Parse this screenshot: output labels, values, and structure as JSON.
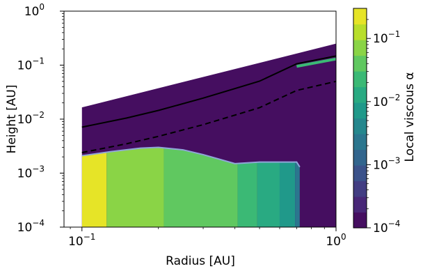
{
  "chart_data": {
    "type": "heatmap",
    "title": "",
    "xlabel": "Radius [AU]",
    "ylabel": "Height [AU]",
    "xscale": "log",
    "yscale": "log",
    "xlim": [
      0.085,
      1.0
    ],
    "ylim": [
      0.0001,
      1.0
    ],
    "x_ticks": [
      {
        "value": 0.1,
        "base": "10",
        "exp": "−1"
      },
      {
        "value": 1.0,
        "base": "10",
        "exp": "0"
      }
    ],
    "y_ticks": [
      {
        "value": 0.0001,
        "base": "10",
        "exp": "−4"
      },
      {
        "value": 0.001,
        "base": "10",
        "exp": "−3"
      },
      {
        "value": 0.01,
        "base": "10",
        "exp": "−2"
      },
      {
        "value": 0.1,
        "base": "10",
        "exp": "−1"
      },
      {
        "value": 1.0,
        "base": "10",
        "exp": "0"
      }
    ],
    "colorbar": {
      "label": "Local viscous α",
      "scale": "log",
      "range": [
        0.0001,
        0.3
      ],
      "n_levels": 14,
      "ticks": [
        {
          "value": 0.0001,
          "base": "10",
          "exp": "−4"
        },
        {
          "value": 0.001,
          "base": "10",
          "exp": "−3"
        },
        {
          "value": 0.01,
          "base": "10",
          "exp": "−2"
        },
        {
          "value": 0.1,
          "base": "10",
          "exp": "−1"
        }
      ]
    },
    "disk_outer_boundary": [
      [
        0.1,
        0.0165
      ],
      [
        1.0,
        0.25
      ]
    ],
    "disk_base_alpha": 0.0001,
    "active_region": {
      "top_boundary": [
        [
          0.1,
          0.0021
        ],
        [
          0.13,
          0.0025
        ],
        [
          0.17,
          0.0029
        ],
        [
          0.2,
          0.003
        ],
        [
          0.25,
          0.0027
        ],
        [
          0.3,
          0.0022
        ],
        [
          0.4,
          0.0015
        ],
        [
          0.5,
          0.0016
        ],
        [
          0.6,
          0.0016
        ],
        [
          0.7,
          0.0016
        ],
        [
          0.72,
          0.0013
        ]
      ],
      "bands": [
        {
          "x_from": 0.1,
          "x_to": 0.125,
          "alpha": 0.25
        },
        {
          "x_from": 0.125,
          "x_to": 0.21,
          "alpha": 0.09
        },
        {
          "x_from": 0.21,
          "x_to": 0.41,
          "alpha": 0.05
        },
        {
          "x_from": 0.41,
          "x_to": 0.49,
          "alpha": 0.025
        },
        {
          "x_from": 0.49,
          "x_to": 0.6,
          "alpha": 0.012
        },
        {
          "x_from": 0.6,
          "x_to": 0.69,
          "alpha": 0.006
        },
        {
          "x_from": 0.69,
          "x_to": 0.72,
          "alpha": 0.002
        }
      ]
    },
    "surface_streak": {
      "x": [
        0.7,
        1.0
      ],
      "y": [
        0.095,
        0.13
      ],
      "alpha": 0.03
    },
    "series": [
      {
        "style": "solid",
        "color": "#000000",
        "points": [
          [
            0.1,
            0.0071
          ],
          [
            0.15,
            0.0105
          ],
          [
            0.2,
            0.0145
          ],
          [
            0.3,
            0.0245
          ],
          [
            0.5,
            0.0505
          ],
          [
            0.7,
            0.106
          ],
          [
            1.0,
            0.148
          ]
        ]
      },
      {
        "style": "dashed",
        "color": "#000000",
        "points": [
          [
            0.1,
            0.0024
          ],
          [
            0.15,
            0.0035
          ],
          [
            0.2,
            0.0048
          ],
          [
            0.3,
            0.0079
          ],
          [
            0.5,
            0.0163
          ],
          [
            0.7,
            0.034
          ],
          [
            1.0,
            0.05
          ]
        ]
      }
    ]
  }
}
